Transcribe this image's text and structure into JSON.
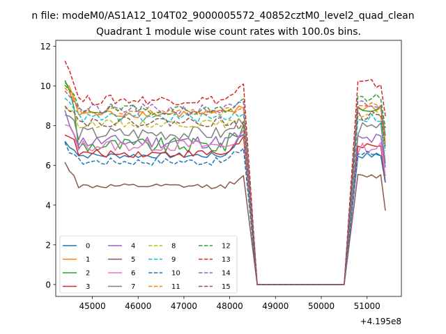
{
  "figure": {
    "suptitle": "n file: modeM0/AS1A12_104T02_9000005572_40852cztM0_level2_quad_clean"
  },
  "chart_data": {
    "type": "line",
    "title": "Quadrant 1 module wise count rates with 100.0s bins.",
    "xlabel": "",
    "ylabel": "",
    "x_offset_label": "+4.195e8",
    "xlim": [
      44200,
      51750
    ],
    "ylim": [
      -0.6,
      12.3
    ],
    "xticks": [
      45000,
      46000,
      47000,
      48000,
      49000,
      50000,
      51000
    ],
    "xtick_labels": [
      "45000",
      "46000",
      "47000",
      "48000",
      "49000",
      "50000",
      "51000"
    ],
    "yticks": [
      0,
      2,
      4,
      6,
      8,
      10,
      12
    ],
    "ytick_labels": [
      "0",
      "2",
      "4",
      "6",
      "8",
      "10",
      "12"
    ],
    "legend_location": "lower-left",
    "legend_columns": 4,
    "gap": {
      "drop_start": 48250,
      "zero_start": 48600,
      "zero_end": 50500,
      "rise_end": 50800
    },
    "segment1": {
      "start": 44400,
      "end": 48250,
      "step": 100
    },
    "segment2": {
      "start": 50800,
      "end": 51400,
      "step": 100
    },
    "series": [
      {
        "name": "0",
        "color": "#1f77b4",
        "dash": "solid",
        "level1": 6.5,
        "level2": 6.5,
        "start1": 7.2,
        "end1": 7.6,
        "noise": 0.15
      },
      {
        "name": "1",
        "color": "#ff7f0e",
        "dash": "solid",
        "level1": 8.6,
        "level2": 8.9,
        "start1": 10.2,
        "end1": 8.9,
        "noise": 0.2
      },
      {
        "name": "2",
        "color": "#2ca02c",
        "dash": "solid",
        "level1": 7.0,
        "level2": 8.9,
        "start1": 10.5,
        "end1": 8.0,
        "noise": 0.4
      },
      {
        "name": "3",
        "color": "#d62728",
        "dash": "solid",
        "level1": 6.6,
        "level2": 6.9,
        "start1": 7.7,
        "end1": 7.4,
        "noise": 0.2
      },
      {
        "name": "4",
        "color": "#9467bd",
        "dash": "solid",
        "level1": 7.2,
        "level2": 7.3,
        "start1": 8.5,
        "end1": 7.6,
        "noise": 0.35
      },
      {
        "name": "5",
        "color": "#8c564b",
        "dash": "solid",
        "level1": 4.95,
        "level2": 5.45,
        "start1": 6.1,
        "end1": 5.4,
        "noise": 0.12
      },
      {
        "name": "6",
        "color": "#e377c2",
        "dash": "solid",
        "level1": 7.0,
        "level2": 6.9,
        "start1": 8.0,
        "end1": 7.5,
        "noise": 0.3
      },
      {
        "name": "7",
        "color": "#7f7f7f",
        "dash": "solid",
        "level1": 7.6,
        "level2": 7.8,
        "start1": 8.6,
        "end1": 8.3,
        "noise": 0.35
      },
      {
        "name": "8",
        "color": "#bcbd22",
        "dash": "dashed",
        "level1": 8.1,
        "level2": 8.6,
        "start1": 9.0,
        "end1": 8.2,
        "noise": 0.2
      },
      {
        "name": "9",
        "color": "#17becf",
        "dash": "dashed",
        "level1": 8.4,
        "level2": 8.4,
        "start1": 9.6,
        "end1": 8.7,
        "noise": 0.25
      },
      {
        "name": "10",
        "color": "#1f77b4",
        "dash": "dashed",
        "level1": 6.2,
        "level2": 6.6,
        "start1": 7.0,
        "end1": 6.9,
        "noise": 0.2
      },
      {
        "name": "11",
        "color": "#ff7f0e",
        "dash": "dashed",
        "level1": 8.7,
        "level2": 9.0,
        "start1": 9.8,
        "end1": 8.9,
        "noise": 0.2
      },
      {
        "name": "12",
        "color": "#2ca02c",
        "dash": "dashed",
        "level1": 8.8,
        "level2": 9.4,
        "start1": 10.0,
        "end1": 9.3,
        "noise": 0.25
      },
      {
        "name": "13",
        "color": "#d62728",
        "dash": "dashed",
        "level1": 9.3,
        "level2": 10.1,
        "start1": 11.3,
        "end1": 10.0,
        "noise": 0.25
      },
      {
        "name": "14",
        "color": "#9467bd",
        "dash": "dashed",
        "level1": 8.8,
        "level2": 9.0,
        "start1": 9.9,
        "end1": 9.0,
        "noise": 0.3
      },
      {
        "name": "15",
        "color": "#8c564b",
        "dash": "dashed",
        "level1": 8.2,
        "level2": 8.5,
        "start1": 9.2,
        "end1": 8.0,
        "noise": 0.25
      }
    ]
  }
}
